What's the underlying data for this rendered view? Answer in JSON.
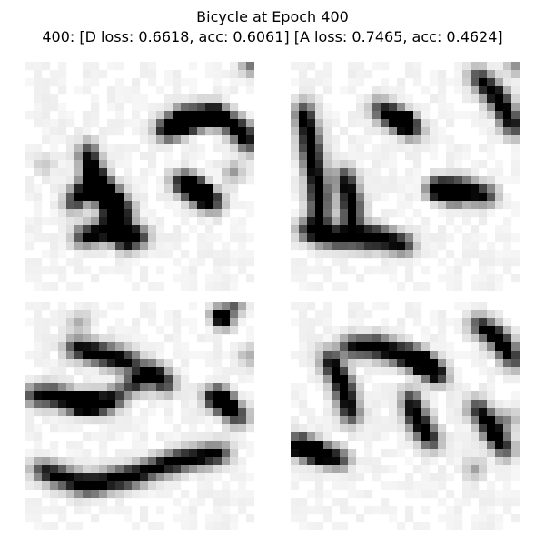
{
  "figure": {
    "title": "Bicycle at Epoch 400",
    "subtitle": "400: [D loss: 0.6618, acc: 0.6061]  [A loss: 0.7465, acc: 0.4624]"
  },
  "grid": {
    "rows": 2,
    "cols": 2,
    "panel_count": 4,
    "colormap": "gray_r"
  }
}
